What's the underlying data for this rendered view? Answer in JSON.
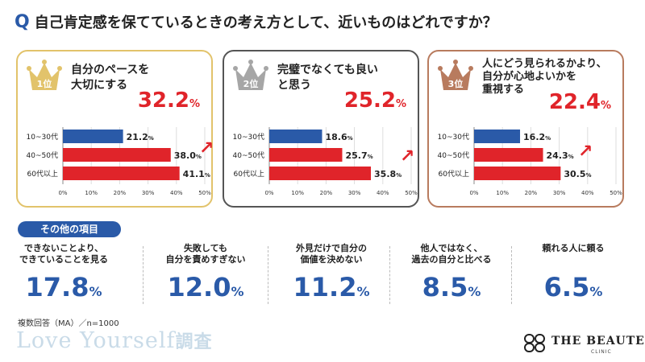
{
  "question": {
    "mark": "Q",
    "text": "自己肯定感を保てているときの考え方として、近いものはどれですか？"
  },
  "colors": {
    "blue": "#2a5aa8",
    "red": "#e0242a",
    "gold": "#e2c36b",
    "silver": "#a6a6a6",
    "bronze": "#b87b5e"
  },
  "chart_data": [
    {
      "type": "bar",
      "rank": "1位",
      "title": "自分のペースを\n大切にする",
      "total": "32.2",
      "unit": "%",
      "categories": [
        "10~30代",
        "40~50代",
        "60代以上"
      ],
      "values": [
        21.2,
        38.0,
        41.1
      ],
      "value_labels": [
        "21.2",
        "38.0",
        "41.1"
      ],
      "xlim": [
        0,
        50
      ],
      "ticks": [
        "0%",
        "10%",
        "20%",
        "30%",
        "40%",
        "50%"
      ]
    },
    {
      "type": "bar",
      "rank": "2位",
      "title": "完璧でなくても良い\nと思う",
      "total": "25.2",
      "unit": "%",
      "categories": [
        "10~30代",
        "40~50代",
        "60代以上"
      ],
      "values": [
        18.6,
        25.7,
        35.8
      ],
      "value_labels": [
        "18.6",
        "25.7",
        "35.8"
      ],
      "xlim": [
        0,
        50
      ],
      "ticks": [
        "0%",
        "10%",
        "20%",
        "30%",
        "40%",
        "50%"
      ]
    },
    {
      "type": "bar",
      "rank": "3位",
      "title": "人にどう見られるかより、\n自分が心地よいかを\n重視する",
      "total": "22.4",
      "unit": "%",
      "categories": [
        "10~30代",
        "40~50代",
        "60代以上"
      ],
      "values": [
        16.2,
        24.3,
        30.5
      ],
      "value_labels": [
        "16.2",
        "24.3",
        "30.5"
      ],
      "xlim": [
        0,
        50
      ],
      "ticks": [
        "0%",
        "10%",
        "20%",
        "30%",
        "40%",
        "50%"
      ]
    }
  ],
  "others": {
    "heading": "その他の項目",
    "items": [
      {
        "label": "できないことより、\nできていることを見る",
        "value": "17.8",
        "unit": "%"
      },
      {
        "label": "失敗しても\n自分を責めすぎない",
        "value": "12.0",
        "unit": "%"
      },
      {
        "label": "外見だけで自分の\n価値を決めない",
        "value": "11.2",
        "unit": "%"
      },
      {
        "label": "他人ではなく、\n過去の自分と比べる",
        "value": "8.5",
        "unit": "%"
      },
      {
        "label": "頼れる人に頼る",
        "value": "6.5",
        "unit": "%"
      }
    ]
  },
  "footnote": "複数回答（MA）／n=1000",
  "survey_name": {
    "main": "Love Yourself",
    "suffix": "調査"
  },
  "brand": {
    "name": "THE BEAUTE",
    "sub": "CLINIC"
  }
}
